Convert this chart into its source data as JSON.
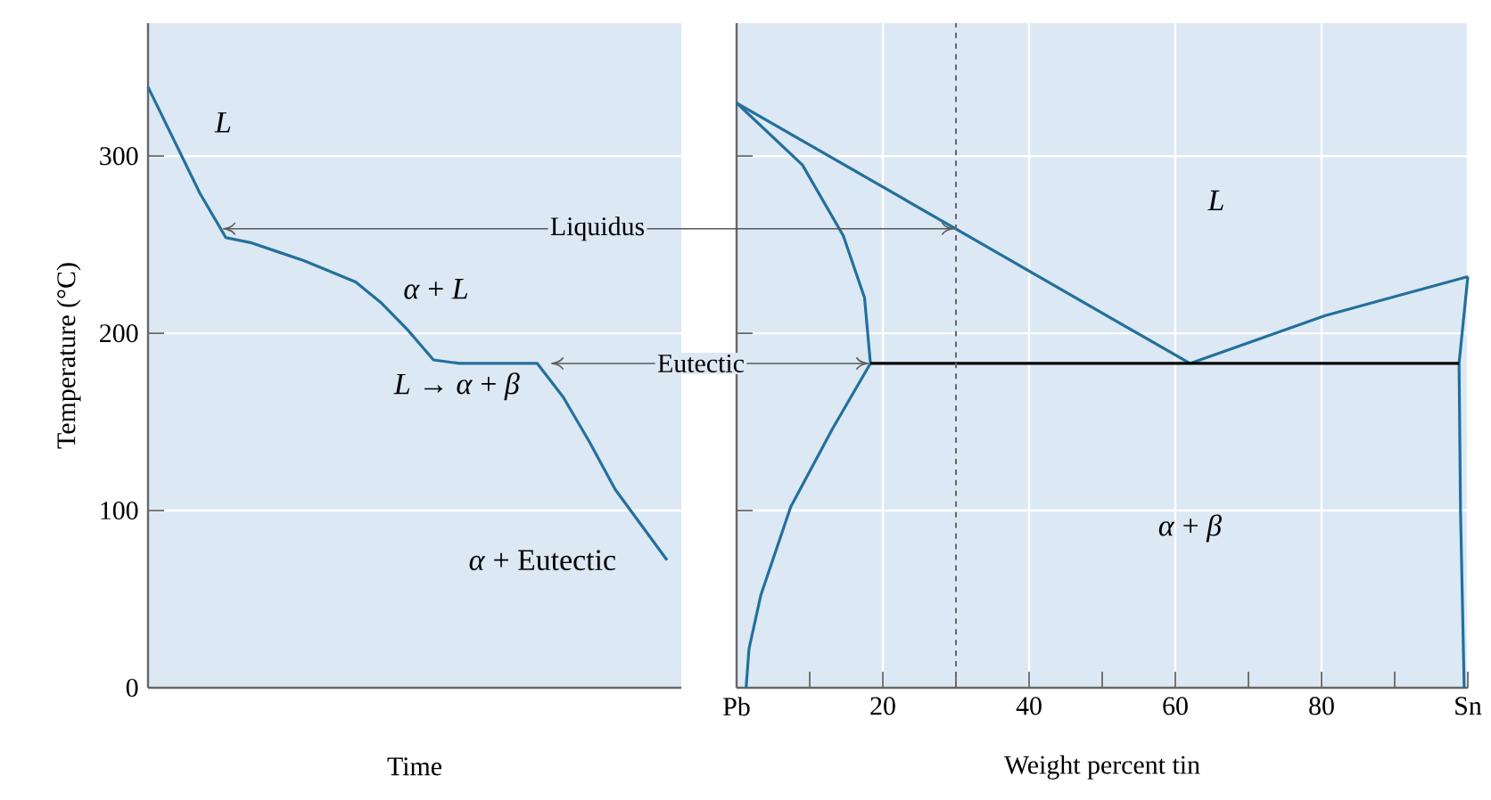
{
  "chart_data": [
    {
      "type": "line",
      "xlabel": "Time",
      "ylabel": "Temperature (°C)",
      "categories": [
        null,
        null,
        null,
        null,
        null,
        null,
        null,
        null,
        null,
        null,
        null,
        null,
        null,
        null,
        null,
        null,
        null,
        null,
        null,
        null,
        null
      ],
      "values": [
        339,
        309,
        279,
        254,
        251,
        246,
        241,
        235,
        229,
        217,
        202,
        185,
        183,
        183,
        183,
        183,
        164,
        139,
        112,
        92,
        72
      ],
      "color": "#23709b",
      "ylim": [
        0,
        375
      ],
      "yticks": [
        0,
        100,
        200,
        300
      ],
      "grid": "y",
      "tick_labels": "y",
      "annotations": [
        "L",
        "*α* + *L*",
        "*L* → *α* + *β*",
        "*α* + Eutectic"
      ]
    },
    {
      "type": "line",
      "xlabel": "Weight percent tin",
      "xlim": [
        0,
        100
      ],
      "ylim": [
        0,
        375
      ],
      "xticks": [
        {
          "value": 0,
          "label": "Pb"
        },
        {
          "value": 10,
          "label": null
        },
        20,
        {
          "value": 30,
          "label": null
        },
        40,
        {
          "value": 50,
          "label": null
        },
        60,
        {
          "value": 70,
          "label": null
        },
        80,
        {
          "value": 90,
          "label": null
        },
        {
          "value": 100,
          "label": "Sn"
        }
      ],
      "yticks": [
        0,
        100,
        200,
        300
      ],
      "grid": true,
      "tick_labels": "x",
      "series": [
        {
          "color": "#23709b",
          "x": [
            0,
            62,
            80.5,
            100
          ],
          "values": [
            330,
            183,
            210,
            232
          ]
        },
        {
          "color": "#23709b",
          "x": [
            0,
            9,
            14.6,
            17.5,
            18.3,
            13.1,
            7.4,
            3.3,
            1.7,
            1.3
          ],
          "values": [
            330,
            295,
            255,
            220,
            183,
            146,
            102,
            52,
            22,
            0
          ]
        },
        {
          "color": "#23709b",
          "x": [
            100,
            98.8,
            99,
            99.5
          ],
          "values": [
            232,
            183,
            100,
            0
          ]
        },
        {
          "color": "#000000",
          "x": [
            18.3,
            98.8
          ],
          "values": [
            183,
            183
          ]
        }
      ],
      "ref_lines": [
        {
          "axis": "x",
          "value": 30,
          "color": "#666666",
          "line_style": "dashed"
        }
      ],
      "annotations": [
        {
          "text": "Liquidus",
          "x": 30,
          "y": 259
        },
        {
          "text": "Eutectic",
          "x": 18.3,
          "y": 183
        },
        "L",
        "*α* + *β*"
      ]
    }
  ]
}
